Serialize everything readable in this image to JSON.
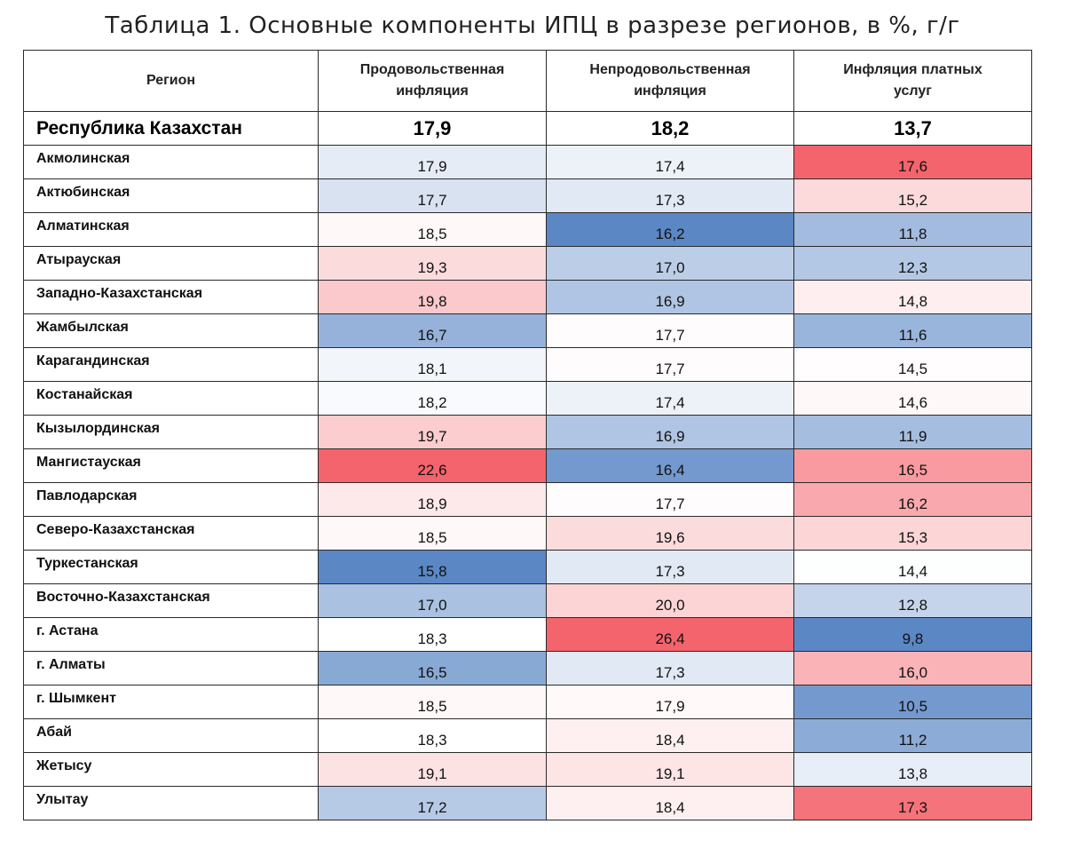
{
  "title": "Таблица 1. Основные компоненты ИПЦ в разрезе регионов, в %, г/г",
  "chart_data": {
    "type": "heatmap",
    "title": "Таблица 1. Основные компоненты ИПЦ в разрезе регионов, в %, г/г",
    "columns": [
      "Регион",
      "Продовольственная инфляция",
      "Непродовольственная инфляция",
      "Инфляция платных услуг"
    ],
    "total": {
      "name": "Республика Казахстан",
      "values": [
        "17,9",
        "18,2",
        "13,7"
      ]
    },
    "rows": [
      {
        "name": "Акмолинская",
        "values": [
          "17,9",
          "17,4",
          "17,6"
        ]
      },
      {
        "name": "Актюбинская",
        "values": [
          "17,7",
          "17,3",
          "15,2"
        ]
      },
      {
        "name": "Алматинская",
        "values": [
          "18,5",
          "16,2",
          "11,8"
        ]
      },
      {
        "name": "Атырауская",
        "values": [
          "19,3",
          "17,0",
          "12,3"
        ]
      },
      {
        "name": "Западно-Казахстанская",
        "values": [
          "19,8",
          "16,9",
          "14,8"
        ]
      },
      {
        "name": "Жамбылская",
        "values": [
          "16,7",
          "17,7",
          "11,6"
        ]
      },
      {
        "name": "Карагандинская",
        "values": [
          "18,1",
          "17,7",
          "14,5"
        ]
      },
      {
        "name": "Костанайская",
        "values": [
          "18,2",
          "17,4",
          "14,6"
        ]
      },
      {
        "name": "Кызылординская",
        "values": [
          "19,7",
          "16,9",
          "11,9"
        ]
      },
      {
        "name": "Мангистауская",
        "values": [
          "22,6",
          "16,4",
          "16,5"
        ]
      },
      {
        "name": "Павлодарская",
        "values": [
          "18,9",
          "17,7",
          "16,2"
        ]
      },
      {
        "name": "Северо-Казахстанская",
        "values": [
          "18,5",
          "19,6",
          "15,3"
        ]
      },
      {
        "name": "Туркестанская",
        "values": [
          "15,8",
          "17,3",
          "14,4"
        ]
      },
      {
        "name": "Восточно-Казахстанская",
        "values": [
          "17,0",
          "20,0",
          "12,8"
        ]
      },
      {
        "name": "г. Астана",
        "values": [
          "18,3",
          "26,4",
          "9,8"
        ]
      },
      {
        "name": "г. Алматы",
        "values": [
          "16,5",
          "17,3",
          "16,0"
        ]
      },
      {
        "name": "г. Шымкент",
        "values": [
          "18,5",
          "17,9",
          "10,5"
        ]
      },
      {
        "name": "Абай",
        "values": [
          "18,3",
          "18,4",
          "11,2"
        ]
      },
      {
        "name": "Жетысу",
        "values": [
          "19,1",
          "19,1",
          "13,8"
        ]
      },
      {
        "name": "Улытау",
        "values": [
          "17,2",
          "18,4",
          "17,3"
        ]
      }
    ],
    "color_scale": {
      "low": "#5b87c5",
      "mid": "#ffffff",
      "high": "#f4646c"
    }
  }
}
